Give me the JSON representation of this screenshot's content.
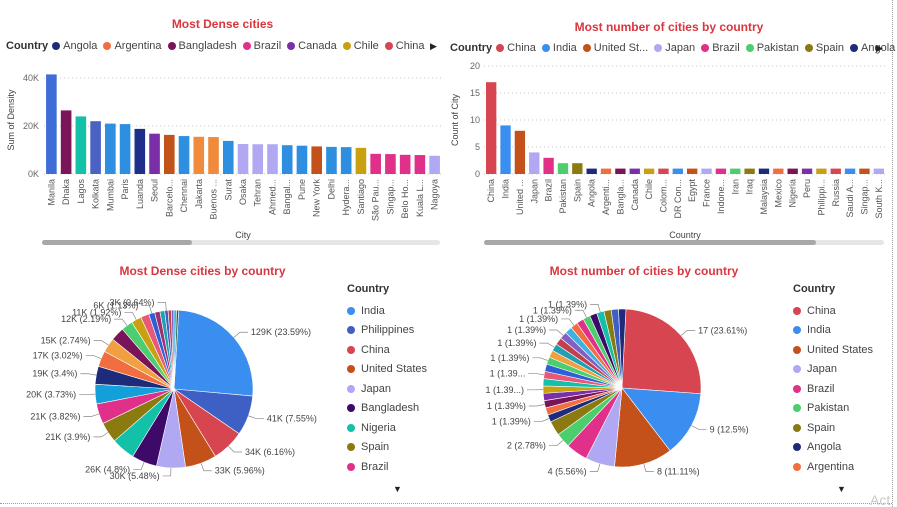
{
  "chart_data": [
    {
      "type": "bar",
      "title": "Most Dense cities",
      "legend_title": "Country",
      "legend": [
        "Angola",
        "Argentina",
        "Bangladesh",
        "Brazil",
        "Canada",
        "Chile",
        "China"
      ],
      "xlabel": "City",
      "ylabel": "Sum of Density",
      "ylim": [
        0,
        45000
      ],
      "yticks": [
        "0K",
        "20K",
        "40K"
      ],
      "categories": [
        "Manila",
        "Dhaka",
        "Lagos",
        "Kolkata",
        "Mumbai",
        "Paris",
        "Luanda",
        "Seoul",
        "Barcelo...",
        "Chennai",
        "Jakarta",
        "Buenos ...",
        "Surat",
        "Osaka",
        "Tehran",
        "Ahmed...",
        "Bangal...",
        "Pune",
        "New York",
        "Delhi",
        "Hydera...",
        "Santiago",
        "São Pau...",
        "Singap...",
        "Belo Ho...",
        "Kuala L...",
        "Nagoya"
      ],
      "values": [
        41500,
        26500,
        24000,
        22000,
        21000,
        20800,
        18800,
        16800,
        16300,
        15800,
        15500,
        15400,
        13800,
        12500,
        12400,
        12400,
        12000,
        11800,
        11500,
        11300,
        11200,
        10900,
        8400,
        8300,
        8000,
        7900,
        7600
      ],
      "colors": [
        "#3e6dd8",
        "#7b1458",
        "#13c0a8",
        "#4a62c4",
        "#2e8ee0",
        "#2e8ee0",
        "#1e2f8a",
        "#7a2ea8",
        "#c0531a",
        "#2e8ee0",
        "#f08a3c",
        "#f08a3c",
        "#2e8ee0",
        "#b0a8f2",
        "#b0a8f2",
        "#b0a8f2",
        "#2e8ee0",
        "#2e8ee0",
        "#c4501a",
        "#2e8ee0",
        "#2e8ee0",
        "#c8a010",
        "#e0308a",
        "#e0308a",
        "#e0308a",
        "#e0308a",
        "#b0a8f2"
      ],
      "grid": true
    },
    {
      "type": "bar",
      "title": "Most number of cities by country",
      "legend_title": "Country",
      "legend": [
        "China",
        "India",
        "United St...",
        "Japan",
        "Brazil",
        "Pakistan",
        "Spain",
        "Angola"
      ],
      "xlabel": "Country",
      "ylabel": "Count of City",
      "ylim": [
        0,
        20
      ],
      "yticks": [
        "0",
        "5",
        "10",
        "15",
        "20"
      ],
      "categories": [
        "China",
        "India",
        "United ...",
        "Japan",
        "Brazil",
        "Pakistan",
        "Spain",
        "Angola",
        "Argenti...",
        "Bangla...",
        "Canada",
        "Chile",
        "Colom...",
        "DR Con...",
        "Egypt",
        "France",
        "Indone...",
        "Iran",
        "Iraq",
        "Malaysia",
        "Mexico",
        "Nigeria",
        "Peru",
        "Philippi...",
        "Russia",
        "Saudi A...",
        "Singap...",
        "South K..."
      ],
      "values": [
        17,
        9,
        8,
        4,
        3,
        2,
        2,
        1,
        1,
        1,
        1,
        1,
        1,
        1,
        1,
        1,
        1,
        1,
        1,
        1,
        1,
        1,
        1,
        1,
        1,
        1,
        1,
        1
      ],
      "colors": [
        "#d64550",
        "#3a8ef0",
        "#c4501a",
        "#b0a8f2",
        "#e0308a",
        "#4cce6e",
        "#8b7a10",
        "#1e2a7a",
        "#f06e40",
        "#7a1458",
        "#7a2ea8",
        "#c8a010",
        "#d64550",
        "#3a8ef0",
        "#c4501a",
        "#b0a8f2",
        "#e0308a",
        "#4cce6e",
        "#8b7a10",
        "#1e2a7a",
        "#f06e40",
        "#7a1458",
        "#7a2ea8",
        "#c8a010",
        "#d64550",
        "#3a8ef0",
        "#c4501a",
        "#b0a8f2"
      ],
      "grid": true
    },
    {
      "type": "pie",
      "title": "Most Dense cities by country",
      "legend_title": "Country",
      "legend": [
        {
          "name": "India",
          "color": "#3a8ef0"
        },
        {
          "name": "Philippines",
          "color": "#3e5fc4"
        },
        {
          "name": "China",
          "color": "#d64550"
        },
        {
          "name": "United States",
          "color": "#c4501a"
        },
        {
          "name": "Japan",
          "color": "#b0a8f2"
        },
        {
          "name": "Bangladesh",
          "color": "#3e0a6a"
        },
        {
          "name": "Nigeria",
          "color": "#13c0a8"
        },
        {
          "name": "Spain",
          "color": "#8b7a10"
        },
        {
          "name": "Brazil",
          "color": "#e0308a"
        }
      ],
      "slices": [
        {
          "label": "129K (23.59%)",
          "value": 23.59,
          "color": "#3a8ef0"
        },
        {
          "label": "41K (7.55%)",
          "value": 7.55,
          "color": "#3e5fc4"
        },
        {
          "label": "34K (6.16%)",
          "value": 6.16,
          "color": "#d64550"
        },
        {
          "label": "33K (5.96%)",
          "value": 5.96,
          "color": "#c4501a"
        },
        {
          "label": "30K (5.48%)",
          "value": 5.48,
          "color": "#b0a8f2"
        },
        {
          "label": "26K (4.8%)",
          "value": 4.8,
          "color": "#3e0a6a"
        },
        {
          "label": "",
          "value": 4.5,
          "color": "#13c0a8"
        },
        {
          "label": "21K (3.9%)",
          "value": 3.9,
          "color": "#8b7a10"
        },
        {
          "label": "21K (3.82%)",
          "value": 3.82,
          "color": "#e0308a"
        },
        {
          "label": "20K (3.73%)",
          "value": 3.73,
          "color": "#13a0d8"
        },
        {
          "label": "19K (3.4%)",
          "value": 3.4,
          "color": "#1e2a7a"
        },
        {
          "label": "17K (3.02%)",
          "value": 3.02,
          "color": "#f06e40"
        },
        {
          "label": "15K (2.74%)",
          "value": 2.74,
          "color": "#f0a040"
        },
        {
          "label": "",
          "value": 2.6,
          "color": "#7a1458"
        },
        {
          "label": "12K (2.19%)",
          "value": 2.19,
          "color": "#4cce6e"
        },
        {
          "label": "11K (1.92%)",
          "value": 1.92,
          "color": "#c8a010"
        },
        {
          "label": "",
          "value": 1.6,
          "color": "#e85878"
        },
        {
          "label": "6K (1.13%)",
          "value": 1.13,
          "color": "#2e5fd8"
        },
        {
          "label": "",
          "value": 1.0,
          "color": "#9e3070"
        },
        {
          "label": "",
          "value": 0.9,
          "color": "#20a0b0"
        },
        {
          "label": "3K (0.64%)",
          "value": 0.64,
          "color": "#3e5fc4"
        },
        {
          "label": "",
          "value": 0.6,
          "color": "#c04050"
        },
        {
          "label": "",
          "value": 0.5,
          "color": "#8060c0"
        },
        {
          "label": "",
          "value": 0.5,
          "color": "#40b0e0"
        },
        {
          "label": "",
          "value": 0.4,
          "color": "#206040"
        }
      ]
    },
    {
      "type": "pie",
      "title": "Most number of cities by country",
      "legend_title": "Country",
      "legend": [
        {
          "name": "China",
          "color": "#d64550"
        },
        {
          "name": "India",
          "color": "#3a8ef0"
        },
        {
          "name": "United States",
          "color": "#c4501a"
        },
        {
          "name": "Japan",
          "color": "#b0a8f2"
        },
        {
          "name": "Brazil",
          "color": "#e0308a"
        },
        {
          "name": "Pakistan",
          "color": "#4cce6e"
        },
        {
          "name": "Spain",
          "color": "#8b7a10"
        },
        {
          "name": "Angola",
          "color": "#1e2a7a"
        },
        {
          "name": "Argentina",
          "color": "#f06e40"
        }
      ],
      "slices": [
        {
          "label": "17 (23.61%)",
          "value": 23.61,
          "color": "#d64550"
        },
        {
          "label": "9 (12.5%)",
          "value": 12.5,
          "color": "#3a8ef0"
        },
        {
          "label": "8 (11.11%)",
          "value": 11.11,
          "color": "#c4501a"
        },
        {
          "label": "4 (5.56%)",
          "value": 5.56,
          "color": "#b0a8f2"
        },
        {
          "label": "",
          "value": 4.17,
          "color": "#e0308a"
        },
        {
          "label": "2 (2.78%)",
          "value": 2.78,
          "color": "#4cce6e"
        },
        {
          "label": "",
          "value": 2.78,
          "color": "#8b7a10"
        },
        {
          "label": "1 (1.39%)",
          "value": 1.39,
          "color": "#1e2a7a"
        },
        {
          "label": "",
          "value": 1.39,
          "color": "#f06e40"
        },
        {
          "label": "1 (1.39%)",
          "value": 1.39,
          "color": "#7a1458"
        },
        {
          "label": "",
          "value": 1.39,
          "color": "#7a2ea8"
        },
        {
          "label": "1 (1.39...)",
          "value": 1.39,
          "color": "#c8a010"
        },
        {
          "label": "",
          "value": 1.39,
          "color": "#13c0a8"
        },
        {
          "label": "1 (1.39...",
          "value": 1.39,
          "color": "#e85878"
        },
        {
          "label": "",
          "value": 1.39,
          "color": "#2e5fd8"
        },
        {
          "label": "1 (1.39%)",
          "value": 1.39,
          "color": "#4cce6e"
        },
        {
          "label": "",
          "value": 1.39,
          "color": "#f0a040"
        },
        {
          "label": "1 (1.39%)",
          "value": 1.39,
          "color": "#20a0b0"
        },
        {
          "label": "",
          "value": 1.39,
          "color": "#c04050"
        },
        {
          "label": "1 (1.39%)",
          "value": 1.39,
          "color": "#8060c0"
        },
        {
          "label": "",
          "value": 1.39,
          "color": "#40b0e0"
        },
        {
          "label": "1 (1.39%)",
          "value": 1.39,
          "color": "#f06e40"
        },
        {
          "label": "",
          "value": 1.39,
          "color": "#e0308a"
        },
        {
          "label": "1 (1.39%)",
          "value": 1.39,
          "color": "#4cce6e"
        },
        {
          "label": "",
          "value": 1.39,
          "color": "#3e0a6a"
        },
        {
          "label": "1 (1.39%)",
          "value": 1.39,
          "color": "#13c0a8"
        },
        {
          "label": "",
          "value": 1.39,
          "color": "#8b7a10"
        },
        {
          "label": "",
          "value": 1.39,
          "color": "#3e5fc4"
        },
        {
          "label": "",
          "value": 1.39,
          "color": "#1e2a7a"
        }
      ]
    }
  ],
  "watermark": "Act"
}
